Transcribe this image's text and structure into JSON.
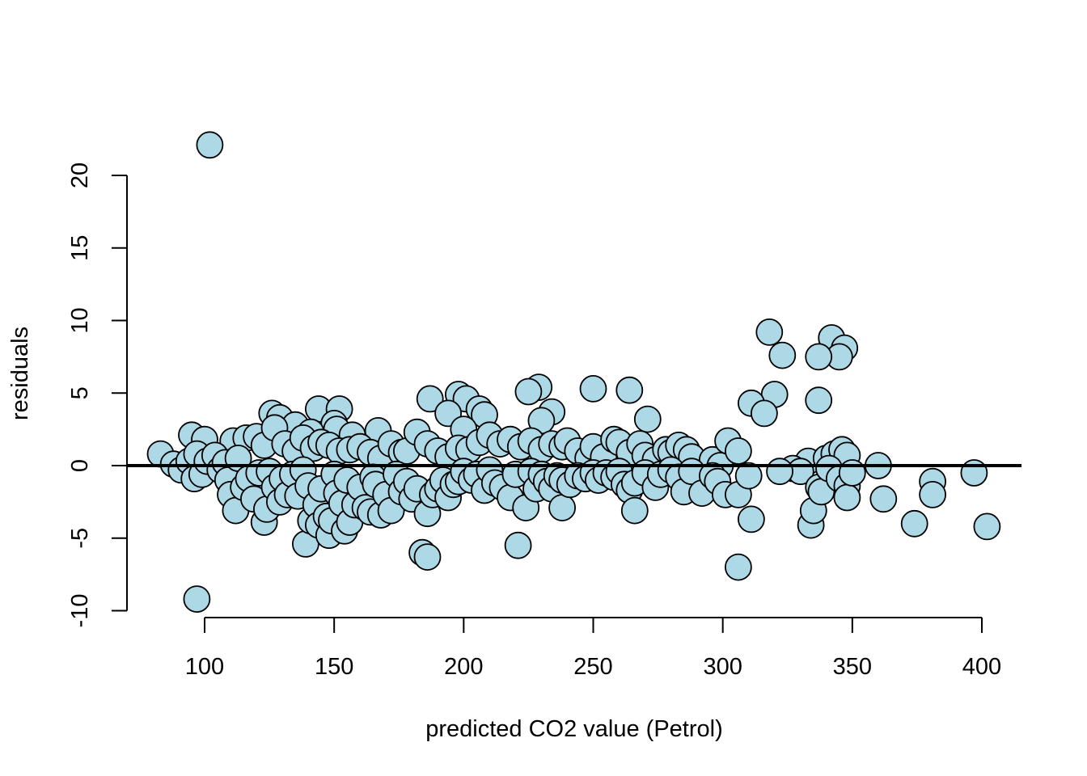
{
  "chart_data": {
    "type": "scatter",
    "title": "",
    "xlabel": "predicted CO2 value (Petrol)",
    "ylabel": "residuals",
    "xlim": [
      70,
      415
    ],
    "ylim": [
      -11,
      22.5
    ],
    "xticks": [
      100,
      150,
      200,
      250,
      300,
      350,
      400
    ],
    "yticks": [
      -10,
      -5,
      0,
      5,
      10,
      15,
      20
    ],
    "reference_line_y": 0,
    "grid": false,
    "legend": "none",
    "point_fill": "#add8e6",
    "point_stroke": "#000000",
    "points": [
      [
        102,
        22.1
      ],
      [
        97,
        -9.2
      ],
      [
        318,
        9.2
      ],
      [
        342,
        8.8
      ],
      [
        347,
        8.1
      ],
      [
        345,
        7.5
      ],
      [
        323,
        7.6
      ],
      [
        337,
        7.5
      ],
      [
        320,
        4.9
      ],
      [
        337,
        4.5
      ],
      [
        311,
        4.3
      ],
      [
        316,
        3.6
      ],
      [
        250,
        5.3
      ],
      [
        264,
        5.2
      ],
      [
        229,
        5.4
      ],
      [
        225,
        5.1
      ],
      [
        198,
        4.9
      ],
      [
        201,
        4.6
      ],
      [
        187,
        4.6
      ],
      [
        206,
        3.9
      ],
      [
        208,
        3.5
      ],
      [
        194,
        3.6
      ],
      [
        200,
        2.5
      ],
      [
        234,
        3.7
      ],
      [
        271,
        3.2
      ],
      [
        230,
        3.1
      ],
      [
        144,
        3.9
      ],
      [
        152,
        3.9
      ],
      [
        126,
        3.6
      ],
      [
        129,
        3.3
      ],
      [
        135,
        2.8
      ],
      [
        150,
        2.9
      ],
      [
        151,
        2.5
      ],
      [
        167,
        2.4
      ],
      [
        141,
        2.3
      ],
      [
        157,
        2.1
      ],
      [
        95,
        2.1
      ],
      [
        100,
        1.8
      ],
      [
        111,
        1.7
      ],
      [
        116,
        1.9
      ],
      [
        120,
        2.0
      ],
      [
        123,
        1.4
      ],
      [
        127,
        2.6
      ],
      [
        131,
        1.5
      ],
      [
        135,
        1.0
      ],
      [
        138,
        1.9
      ],
      [
        142,
        1.2
      ],
      [
        145,
        1.6
      ],
      [
        148,
        1.4
      ],
      [
        152,
        1.0
      ],
      [
        156,
        1.1
      ],
      [
        160,
        1.3
      ],
      [
        164,
        0.9
      ],
      [
        168,
        0.5
      ],
      [
        172,
        1.5
      ],
      [
        176,
        0.9
      ],
      [
        178,
        1.0
      ],
      [
        182,
        2.3
      ],
      [
        186,
        1.5
      ],
      [
        190,
        1.0
      ],
      [
        194,
        0.6
      ],
      [
        198,
        1.2
      ],
      [
        202,
        1.1
      ],
      [
        206,
        1.6
      ],
      [
        210,
        2.1
      ],
      [
        214,
        1.5
      ],
      [
        218,
        1.8
      ],
      [
        222,
        1.3
      ],
      [
        226,
        1.7
      ],
      [
        230,
        1.1
      ],
      [
        234,
        1.5
      ],
      [
        238,
        1.3
      ],
      [
        240,
        1.7
      ],
      [
        244,
        1.0
      ],
      [
        248,
        0.5
      ],
      [
        250,
        1.3
      ],
      [
        254,
        0.6
      ],
      [
        258,
        1.8
      ],
      [
        260,
        1.6
      ],
      [
        264,
        0.9
      ],
      [
        268,
        1.5
      ],
      [
        270,
        0.7
      ],
      [
        274,
        0.4
      ],
      [
        278,
        1.1
      ],
      [
        280,
        0.9
      ],
      [
        283,
        1.4
      ],
      [
        286,
        1.1
      ],
      [
        288,
        0.6
      ],
      [
        296,
        0.4
      ],
      [
        299,
        0.0
      ],
      [
        302,
        1.7
      ],
      [
        306,
        1.0
      ],
      [
        333,
        0.3
      ],
      [
        340,
        0.5
      ],
      [
        343,
        0.8
      ],
      [
        346,
        1.1
      ],
      [
        348,
        0.7
      ],
      [
        360,
        0.0
      ],
      [
        327,
        -0.2
      ],
      [
        330,
        -0.4
      ],
      [
        83,
        0.8
      ],
      [
        88,
        0.1
      ],
      [
        91,
        -0.3
      ],
      [
        94,
        0.3
      ],
      [
        96,
        -0.9
      ],
      [
        97,
        0.8
      ],
      [
        99,
        -0.6
      ],
      [
        101,
        0.3
      ],
      [
        104,
        0.7
      ],
      [
        106,
        -0.3
      ],
      [
        108,
        0.2
      ],
      [
        109,
        -1.0
      ],
      [
        110,
        -2.0
      ],
      [
        112,
        -3.1
      ],
      [
        113,
        0.5
      ],
      [
        115,
        -1.5
      ],
      [
        117,
        -0.9
      ],
      [
        119,
        -2.3
      ],
      [
        121,
        -0.5
      ],
      [
        123,
        -3.9
      ],
      [
        124,
        -3.0
      ],
      [
        125,
        -0.4
      ],
      [
        127,
        -1.5
      ],
      [
        129,
        -2.5
      ],
      [
        130,
        -0.9
      ],
      [
        132,
        -2.0
      ],
      [
        134,
        -0.6
      ],
      [
        136,
        -2.1
      ],
      [
        138,
        -0.3
      ],
      [
        139,
        -5.4
      ],
      [
        140,
        -1.4
      ],
      [
        141,
        -3.8
      ],
      [
        143,
        -2.7
      ],
      [
        144,
        -4.1
      ],
      [
        145,
        -1.6
      ],
      [
        147,
        -3.5
      ],
      [
        148,
        -4.8
      ],
      [
        149,
        -3.8
      ],
      [
        150,
        -0.6
      ],
      [
        151,
        -1.9
      ],
      [
        153,
        -2.6
      ],
      [
        154,
        -4.5
      ],
      [
        155,
        -1.0
      ],
      [
        156,
        -3.9
      ],
      [
        158,
        -2.7
      ],
      [
        160,
        -1.5
      ],
      [
        162,
        -2.9
      ],
      [
        164,
        -3.2
      ],
      [
        165,
        -0.8
      ],
      [
        166,
        -1.3
      ],
      [
        168,
        -3.4
      ],
      [
        170,
        -2.0
      ],
      [
        172,
        -3.1
      ],
      [
        174,
        -0.6
      ],
      [
        176,
        -1.8
      ],
      [
        178,
        -1.1
      ],
      [
        180,
        -2.3
      ],
      [
        182,
        -1.6
      ],
      [
        184,
        -6.0
      ],
      [
        186,
        -6.3
      ],
      [
        186,
        -3.3
      ],
      [
        188,
        -2.0
      ],
      [
        190,
        -1.6
      ],
      [
        192,
        -1.0
      ],
      [
        194,
        -2.2
      ],
      [
        196,
        -1.3
      ],
      [
        198,
        -1.1
      ],
      [
        200,
        -0.4
      ],
      [
        203,
        -1.0
      ],
      [
        205,
        -0.6
      ],
      [
        208,
        -1.7
      ],
      [
        210,
        -0.3
      ],
      [
        212,
        -1.2
      ],
      [
        215,
        -1.5
      ],
      [
        218,
        -2.2
      ],
      [
        220,
        -0.6
      ],
      [
        221,
        -5.5
      ],
      [
        224,
        -2.9
      ],
      [
        226,
        -0.4
      ],
      [
        228,
        -1.6
      ],
      [
        230,
        -0.6
      ],
      [
        232,
        -1.1
      ],
      [
        234,
        -1.6
      ],
      [
        236,
        -0.7
      ],
      [
        238,
        -2.9
      ],
      [
        238,
        -1.0
      ],
      [
        241,
        -1.3
      ],
      [
        244,
        -0.7
      ],
      [
        247,
        -0.9
      ],
      [
        250,
        -0.5
      ],
      [
        252,
        -1.0
      ],
      [
        255,
        -0.5
      ],
      [
        258,
        -0.8
      ],
      [
        260,
        -0.4
      ],
      [
        262,
        -1.3
      ],
      [
        264,
        -1.7
      ],
      [
        266,
        -3.1
      ],
      [
        266,
        -1.2
      ],
      [
        270,
        -0.5
      ],
      [
        274,
        -1.5
      ],
      [
        276,
        -0.6
      ],
      [
        280,
        -0.3
      ],
      [
        283,
        -0.8
      ],
      [
        285,
        -1.8
      ],
      [
        288,
        -0.4
      ],
      [
        292,
        -1.9
      ],
      [
        296,
        -0.7
      ],
      [
        298,
        -1.1
      ],
      [
        301,
        -2.0
      ],
      [
        306,
        -2.0
      ],
      [
        306,
        -7.0
      ],
      [
        310,
        -0.7
      ],
      [
        311,
        -3.7
      ],
      [
        322,
        -0.4
      ],
      [
        334,
        -4.1
      ],
      [
        335,
        -3.1
      ],
      [
        337,
        -1.5
      ],
      [
        338,
        -1.8
      ],
      [
        341,
        -0.2
      ],
      [
        345,
        -0.9
      ],
      [
        348,
        -1.4
      ],
      [
        348,
        -2.2
      ],
      [
        350,
        -0.5
      ],
      [
        362,
        -2.3
      ],
      [
        374,
        -4.0
      ],
      [
        381,
        -1.1
      ],
      [
        381,
        -2.0
      ],
      [
        397,
        -0.5
      ],
      [
        402,
        -4.2
      ]
    ]
  }
}
